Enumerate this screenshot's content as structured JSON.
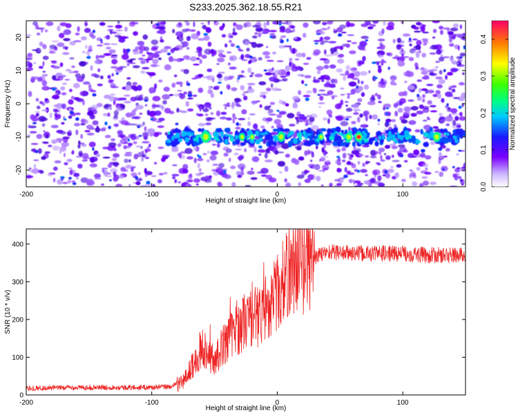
{
  "title": "S233.2025.362.18.55.R21",
  "chart_data": [
    {
      "type": "heatmap",
      "xlabel": "Height of straight line (km)",
      "ylabel": "Frequency (Hz)",
      "xlim": [
        -200,
        150
      ],
      "ylim": [
        -25,
        25
      ],
      "xticks": [
        -200,
        -100,
        0,
        100
      ],
      "yticks": [
        -20,
        -10,
        0,
        10,
        20
      ],
      "signal_band": {
        "frequency_hz": -10,
        "x_start_km": -88,
        "x_end_km": 150
      },
      "colorbar": {
        "label": "Normalized spectral amplitude",
        "range": [
          0.0,
          0.45
        ],
        "ticks": [
          0.0,
          0.1,
          0.2,
          0.3,
          0.4
        ],
        "tick_labels": [
          "0.0",
          "0.1",
          "0.2",
          "0.3",
          "0.4"
        ]
      }
    },
    {
      "type": "line",
      "xlabel": "Height of straight line (km)",
      "ylabel": "SNR (10 * v/v)",
      "xlim": [
        -200,
        150
      ],
      "ylim": [
        0,
        440
      ],
      "xticks": [
        -200,
        -100,
        0,
        100
      ],
      "yticks": [
        0,
        100,
        200,
        300,
        400
      ],
      "series": [
        {
          "name": "SNR",
          "color": "#ee2222",
          "x": [
            -200,
            -150,
            -100,
            -85,
            -75,
            -65,
            -60,
            -50,
            -40,
            -30,
            -25,
            -15,
            -5,
            0,
            10,
            15,
            20,
            30,
            40,
            60,
            80,
            100,
            120,
            150
          ],
          "values": [
            18,
            20,
            20,
            22,
            35,
            90,
            130,
            90,
            150,
            180,
            200,
            210,
            250,
            270,
            330,
            350,
            340,
            365,
            380,
            375,
            375,
            375,
            370,
            370
          ]
        }
      ]
    }
  ]
}
